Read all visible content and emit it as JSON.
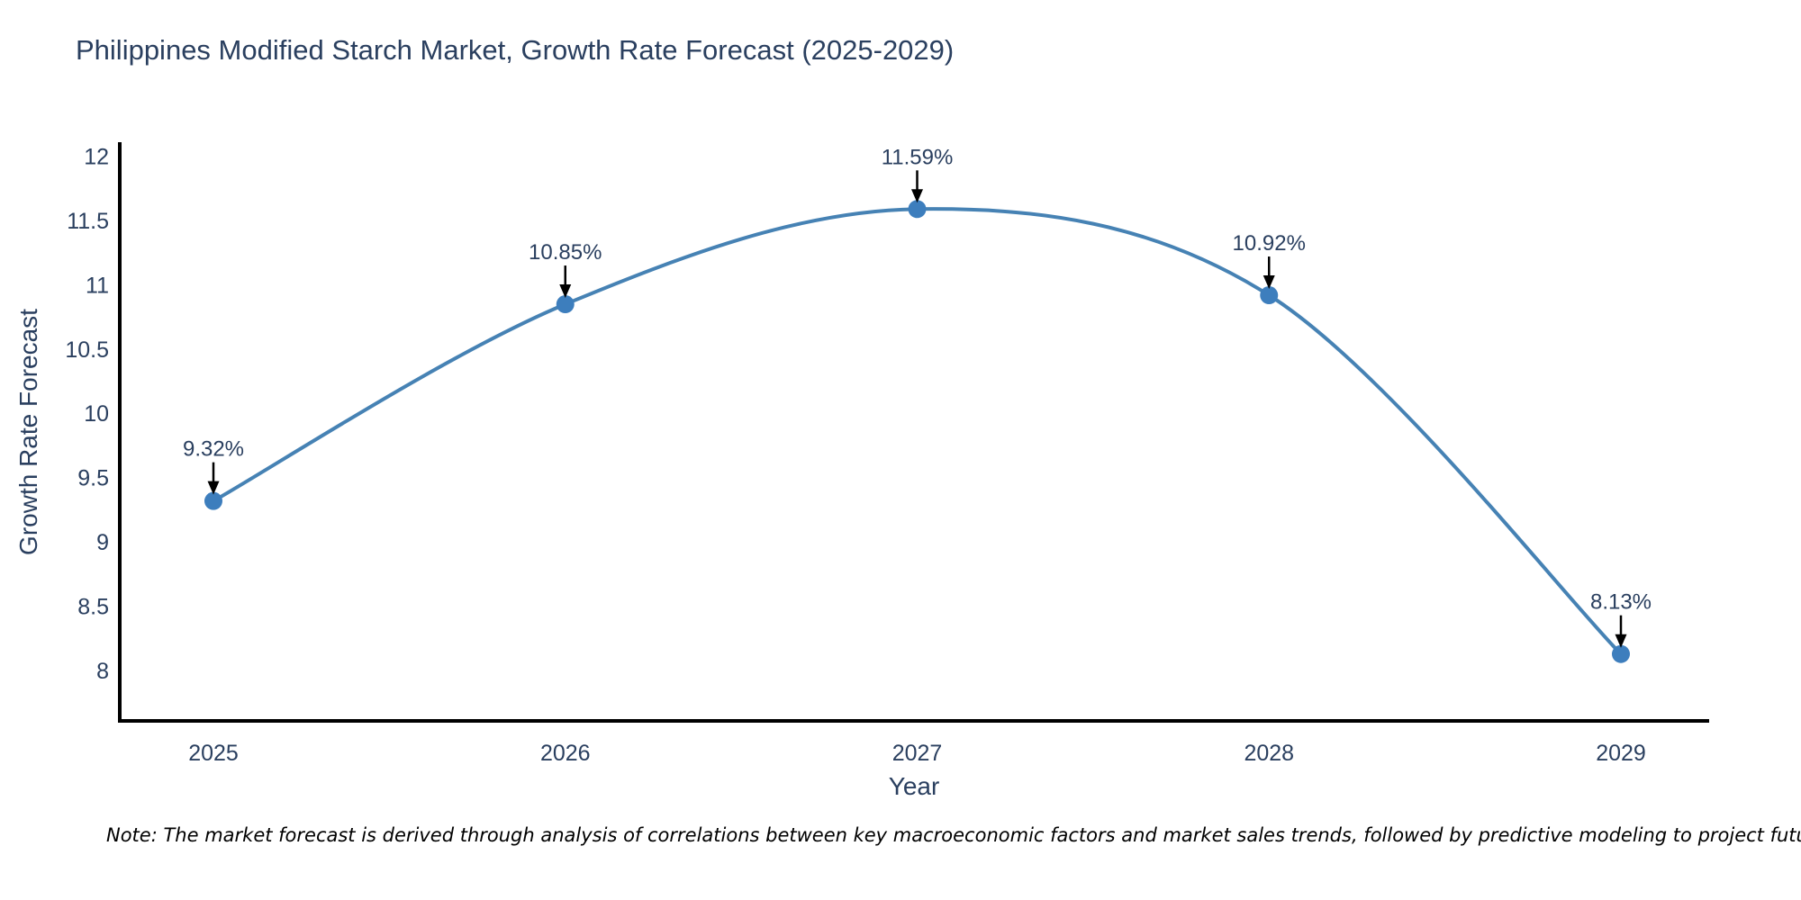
{
  "chart": {
    "title": "Philippines Modified Starch Market, Growth Rate Forecast (2025-2029)",
    "xlabel": "Year",
    "ylabel": "Growth Rate Forecast",
    "note": "Note: The market forecast is derived through analysis of correlations between key macroeconomic factors and market sales trends, followed by predictive modeling to project future sal"
  },
  "chart_data": {
    "type": "line",
    "title": "Philippines Modified Starch Market, Growth Rate Forecast (2025-2029)",
    "xlabel": "Year",
    "ylabel": "Growth Rate Forecast",
    "categories": [
      "2025",
      "2026",
      "2027",
      "2028",
      "2029"
    ],
    "values": [
      9.32,
      10.85,
      11.59,
      10.92,
      8.13
    ],
    "point_labels": [
      "9.32%",
      "10.85%",
      "11.59%",
      "10.92%",
      "8.13%"
    ],
    "ylim": [
      7.61,
      12.11
    ],
    "yticks": [
      8,
      8.5,
      9,
      9.5,
      10,
      10.5,
      11,
      11.5,
      12
    ],
    "grid": false,
    "legend": "none",
    "line_shape": "spline",
    "colors": {
      "line": "#4682b4",
      "marker": "#3d7ebd",
      "axis": "#000000",
      "text": "#2a3f5f",
      "annotation_text": "#2a3f5f",
      "arrow": "#000000",
      "background": "#ffffff"
    }
  }
}
